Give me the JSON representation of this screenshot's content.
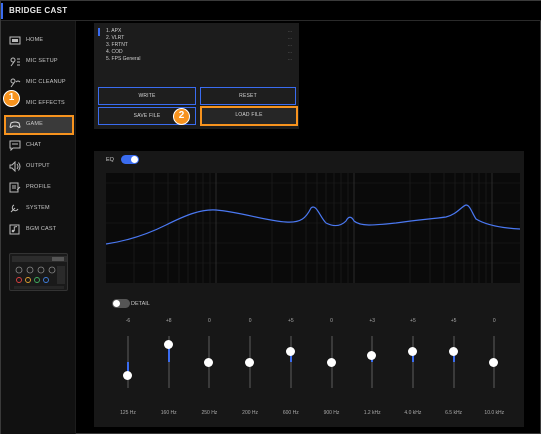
{
  "app": {
    "title": "BRIDGE CAST"
  },
  "sidebar": {
    "items": [
      {
        "label": "HOME",
        "icon": "home-icon"
      },
      {
        "label": "MIC SETUP",
        "icon": "mic-setup-icon"
      },
      {
        "label": "MIC CLEANUP",
        "icon": "mic-cleanup-icon"
      },
      {
        "label": "MIC EFFECTS",
        "icon": "mic-effects-icon"
      },
      {
        "label": "GAME",
        "icon": "gamepad-icon",
        "active": true
      },
      {
        "label": "CHAT",
        "icon": "chat-icon"
      },
      {
        "label": "OUTPUT",
        "icon": "speaker-icon"
      },
      {
        "label": "PROFILE",
        "icon": "profile-icon"
      },
      {
        "label": "SYSTEM",
        "icon": "system-icon"
      },
      {
        "label": "BGM CAST",
        "icon": "music-icon"
      }
    ]
  },
  "callouts": {
    "one": "1",
    "two": "2"
  },
  "presets": {
    "items": [
      {
        "label": "1. APX",
        "dots": "..."
      },
      {
        "label": "2. VLRT",
        "dots": "..."
      },
      {
        "label": "3. FRTNT",
        "dots": "..."
      },
      {
        "label": "4. COD",
        "dots": "..."
      },
      {
        "label": "5. FPS General",
        "dots": "..."
      }
    ],
    "write_label": "WRITE",
    "reset_label": "RESET",
    "save_label": "SAVE FILE",
    "load_label": "LOAD FILE"
  },
  "eq": {
    "label": "EQ",
    "enabled": true,
    "detail_label": "DETAIL",
    "detail_enabled": false,
    "bands": [
      {
        "freq": "125 Hz",
        "gain_label": "-6",
        "gain": -6
      },
      {
        "freq": "160 Hz",
        "gain_label": "+8",
        "gain": 8
      },
      {
        "freq": "250 Hz",
        "gain_label": "0",
        "gain": 0
      },
      {
        "freq": "200 Hz",
        "gain_label": "0",
        "gain": 0
      },
      {
        "freq": "600 Hz",
        "gain_label": "+5",
        "gain": 5
      },
      {
        "freq": "900 Hz",
        "gain_label": "0",
        "gain": 0
      },
      {
        "freq": "1.2 kHz",
        "gain_label": "+3",
        "gain": 3
      },
      {
        "freq": "4.0 kHz",
        "gain_label": "+5",
        "gain": 5
      },
      {
        "freq": "6.5 kHz",
        "gain_label": "+5",
        "gain": 5
      },
      {
        "freq": "10.0 kHz",
        "gain_label": "0",
        "gain": 0
      }
    ]
  },
  "colors": {
    "accent": "#3a6cf0",
    "highlight": "#f7931e",
    "curve": "#4a78f2"
  }
}
